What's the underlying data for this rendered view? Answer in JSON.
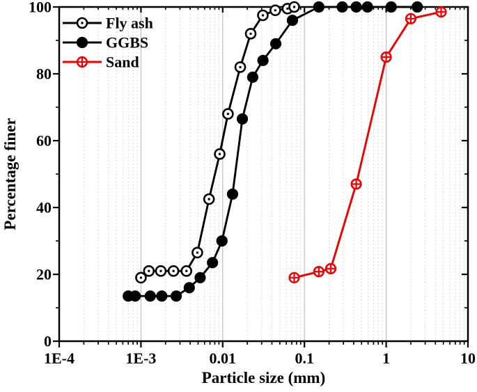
{
  "chart_data": {
    "type": "line",
    "title": "",
    "xlabel": "Particle size (mm)",
    "ylabel": "Percentage finer",
    "x_scale": "log",
    "xlim": [
      0.0001,
      10
    ],
    "ylim": [
      0,
      100
    ],
    "x_ticks": {
      "values": [
        0.0001,
        0.001,
        0.01,
        0.1,
        1,
        10
      ],
      "labels": [
        "1E-4",
        "1E-3",
        "0.01",
        "0.1",
        "1",
        "10"
      ]
    },
    "y_ticks": {
      "major": [
        0,
        20,
        40,
        60,
        80,
        100
      ],
      "minor_step": 10
    },
    "grid": {
      "vertical_minor": "dotted",
      "vertical_major": "solid",
      "horizontal": "none"
    },
    "legend": {
      "position": "top-left"
    },
    "series": [
      {
        "name": "Fly ash",
        "color": "#000000",
        "marker": "open-circle-dot",
        "x": [
          0.001,
          0.00125,
          0.00175,
          0.0025,
          0.0036,
          0.0049,
          0.0068,
          0.0092,
          0.0116,
          0.0164,
          0.022,
          0.031,
          0.044,
          0.062,
          0.075
        ],
        "y": [
          19,
          21,
          21,
          21,
          21,
          26.5,
          42.5,
          56,
          68,
          82,
          92,
          97.5,
          99,
          99.5,
          100
        ]
      },
      {
        "name": "GGBS",
        "color": "#000000",
        "marker": "filled-circle",
        "x": [
          0.0007,
          0.00085,
          0.0013,
          0.0018,
          0.0027,
          0.0039,
          0.0053,
          0.0075,
          0.0098,
          0.0132,
          0.0174,
          0.0233,
          0.0311,
          0.0446,
          0.0713,
          0.15,
          0.29,
          0.43,
          0.59,
          1.15,
          2.4
        ],
        "y": [
          13.5,
          13.5,
          13.5,
          13.5,
          13.5,
          16,
          19,
          23.5,
          30,
          44,
          66.5,
          79,
          84,
          89,
          96,
          100,
          100,
          100,
          100,
          100,
          100
        ]
      },
      {
        "name": "Sand",
        "color": "#ee0000",
        "marker": "circle-plus",
        "x": [
          0.075,
          0.15,
          0.21,
          0.43,
          1.0,
          2.0,
          4.7
        ],
        "y": [
          19,
          20.8,
          21.7,
          47,
          85,
          96.5,
          98.5
        ]
      }
    ]
  },
  "colors": {
    "axis": "#000000",
    "grid_major": "#b3b3b3",
    "grid_minor": "#d2d2d2",
    "background": "#ffffff",
    "accent_red": "#ee0000"
  }
}
